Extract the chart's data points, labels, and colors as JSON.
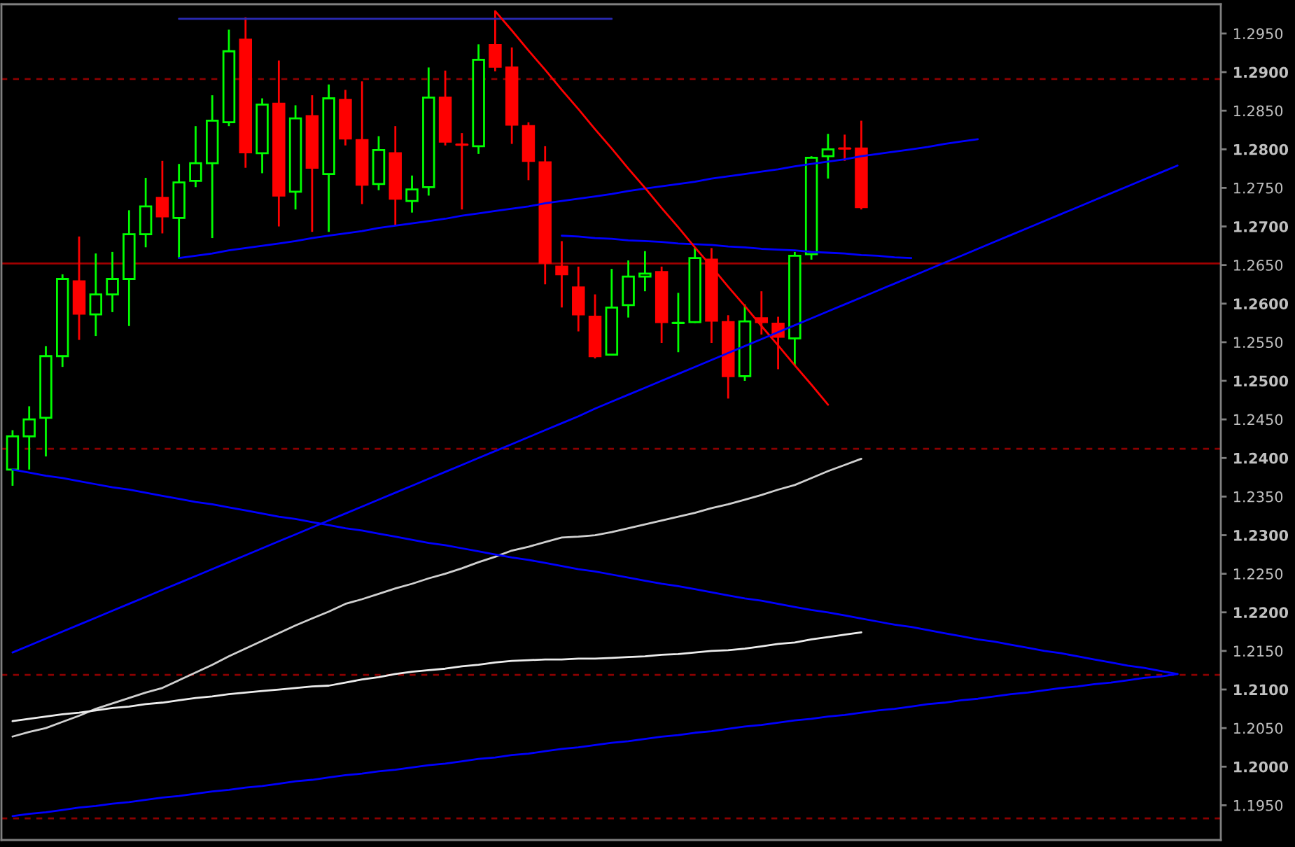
{
  "chart_data": {
    "type": "candlestick",
    "categories": [
      null,
      null,
      null,
      null,
      null,
      null,
      null,
      null,
      null,
      null,
      null,
      null,
      null,
      null,
      null,
      null,
      null,
      null,
      null,
      null,
      null,
      null,
      null,
      null,
      null,
      null,
      null,
      null,
      null,
      null,
      null,
      null,
      null,
      null,
      null,
      null,
      null,
      null,
      null,
      null,
      null,
      null,
      null,
      null,
      null,
      null,
      null,
      null,
      null,
      null,
      null,
      null,
      null,
      null,
      null,
      null,
      null,
      null,
      null,
      null,
      null,
      null,
      null,
      null,
      null,
      null,
      null,
      null,
      null,
      null,
      null,
      null,
      null
    ],
    "ohlc": [
      [
        1.2385,
        1.2436,
        1.2364,
        1.2428
      ],
      [
        1.2428,
        1.2467,
        1.2385,
        1.245
      ],
      [
        1.2452,
        1.2545,
        1.2402,
        1.2532
      ],
      [
        1.2532,
        1.2638,
        1.2518,
        1.2632
      ],
      [
        1.2629,
        1.2687,
        1.2553,
        1.2587
      ],
      [
        1.2586,
        1.2665,
        1.2558,
        1.2612
      ],
      [
        1.2612,
        1.2667,
        1.2589,
        1.2632
      ],
      [
        1.2632,
        1.2721,
        1.2571,
        1.269
      ],
      [
        1.269,
        1.2763,
        1.2673,
        1.2726
      ],
      [
        1.2737,
        1.2785,
        1.2691,
        1.2713
      ],
      [
        1.2711,
        1.2781,
        1.2659,
        1.2757
      ],
      [
        1.2759,
        1.283,
        1.2751,
        1.2782
      ],
      [
        1.2782,
        1.287,
        1.2685,
        1.2837
      ],
      [
        1.2835,
        1.2955,
        1.283,
        1.2927
      ],
      [
        1.2942,
        1.2971,
        1.2776,
        1.2796
      ],
      [
        1.2795,
        1.2866,
        1.2769,
        1.2858
      ],
      [
        1.2859,
        1.2915,
        1.27,
        1.274
      ],
      [
        1.2745,
        1.2857,
        1.2722,
        1.284
      ],
      [
        1.2843,
        1.287,
        1.2693,
        1.2776
      ],
      [
        1.2768,
        1.2884,
        1.2693,
        1.2866
      ],
      [
        1.2864,
        1.2877,
        1.2805,
        1.2814
      ],
      [
        1.2812,
        1.2888,
        1.2729,
        1.2754
      ],
      [
        1.2755,
        1.2817,
        1.2747,
        1.2799
      ],
      [
        1.2795,
        1.283,
        1.2701,
        1.2736
      ],
      [
        1.2733,
        1.2766,
        1.2718,
        1.2748
      ],
      [
        1.2751,
        1.2906,
        1.274,
        1.2867
      ],
      [
        1.2867,
        1.2902,
        1.2805,
        1.281
      ],
      [
        1.2806,
        1.2821,
        1.2722,
        1.2806
      ],
      [
        1.2804,
        1.2936,
        1.2794,
        1.2916
      ],
      [
        1.2935,
        1.2979,
        1.2901,
        1.2907
      ],
      [
        1.2906,
        1.2932,
        1.2807,
        1.2832
      ],
      [
        1.283,
        1.2835,
        1.276,
        1.2785
      ],
      [
        1.2783,
        1.2804,
        1.2625,
        1.2653
      ],
      [
        1.2648,
        1.2681,
        1.2595,
        1.2638
      ],
      [
        1.2621,
        1.2648,
        1.2564,
        1.2586
      ],
      [
        1.2583,
        1.2612,
        1.2529,
        1.2532
      ],
      [
        1.2534,
        1.2645,
        1.2534,
        1.2595
      ],
      [
        1.2598,
        1.2656,
        1.2582,
        1.2635
      ],
      [
        1.2635,
        1.2668,
        1.2616,
        1.2639
      ],
      [
        1.2641,
        1.2648,
        1.2549,
        1.2576
      ],
      [
        1.2575,
        1.2614,
        1.2537,
        1.2575
      ],
      [
        1.2576,
        1.2673,
        1.2575,
        1.2659
      ],
      [
        1.2657,
        1.2672,
        1.2549,
        1.2578
      ],
      [
        1.2576,
        1.2585,
        1.2477,
        1.2506
      ],
      [
        1.2506,
        1.2599,
        1.25,
        1.2577
      ],
      [
        1.2581,
        1.2616,
        1.256,
        1.2576
      ],
      [
        1.2574,
        1.2583,
        1.2515,
        1.2557
      ],
      [
        1.2555,
        1.2667,
        1.252,
        1.2662
      ],
      [
        1.2664,
        1.2791,
        1.2657,
        1.2789
      ],
      [
        1.2791,
        1.282,
        1.2762,
        1.28
      ],
      [
        1.2801,
        1.2819,
        1.2785,
        1.2801
      ],
      [
        1.2801,
        1.2837,
        1.2722,
        1.2725
      ],
      null,
      null,
      null,
      null,
      null,
      null,
      null,
      null,
      null,
      null,
      null,
      null,
      null,
      null,
      null,
      null,
      null,
      null,
      null,
      null,
      null
    ],
    "colors": [
      "#00ff00",
      "#00ff00",
      "#00ff00",
      "#00ff00",
      "#ff0000",
      "#00ff00",
      "#00ff00",
      "#00ff00",
      "#00ff00",
      "#ff0000",
      "#00ff00",
      "#00ff00",
      "#00ff00",
      "#00ff00",
      "#ff0000",
      "#00ff00",
      "#ff0000",
      "#00ff00",
      "#ff0000",
      "#00ff00",
      "#ff0000",
      "#ff0000",
      "#00ff00",
      "#ff0000",
      "#00ff00",
      "#00ff00",
      "#ff0000",
      "#ff0000",
      "#00ff00",
      "#ff0000",
      "#ff0000",
      "#ff0000",
      "#ff0000",
      "#ff0000",
      "#ff0000",
      "#ff0000",
      "#00ff00",
      "#00ff00",
      "#00ff00",
      "#ff0000",
      "#00ff00",
      "#00ff00",
      "#ff0000",
      "#ff0000",
      "#00ff00",
      "#ff0000",
      "#ff0000",
      "#00ff00",
      "#00ff00",
      "#00ff00",
      "#ff0000",
      "#ff0000",
      null,
      null,
      null,
      null,
      null,
      null,
      null,
      null,
      null,
      null,
      null,
      null,
      null,
      null,
      null,
      null,
      null,
      null,
      null,
      null,
      null
    ],
    "series": [
      {
        "type": "line",
        "color": "#d0d0d0",
        "values": [
          1.2039,
          1.2045,
          1.205,
          1.2058,
          1.2066,
          1.2075,
          1.2082,
          1.2089,
          1.2096,
          1.2102,
          1.2112,
          1.2122,
          1.2132,
          1.2143,
          1.2153,
          1.2163,
          1.2173,
          1.2183,
          1.2192,
          1.2201,
          1.2211,
          1.2217,
          1.2224,
          1.2231,
          1.2237,
          1.2244,
          1.225,
          1.2257,
          1.2265,
          1.2272,
          1.228,
          1.2285,
          1.2291,
          1.2297,
          1.2298,
          1.23,
          1.2304,
          1.2309,
          1.2314,
          1.2319,
          1.2324,
          1.2329,
          1.2335,
          1.234,
          1.2346,
          1.2352,
          1.2359,
          1.2365,
          1.2374,
          1.2383,
          1.2391,
          1.2399,
          null,
          null,
          null,
          null,
          null,
          null,
          null,
          null,
          null,
          null,
          null,
          null,
          null,
          null,
          null,
          null,
          null,
          null,
          null,
          null,
          null
        ]
      },
      {
        "type": "line",
        "color": "#ececec",
        "values": [
          1.2059,
          1.2062,
          1.2065,
          1.2068,
          1.207,
          1.2073,
          1.2076,
          1.2078,
          1.2081,
          1.2083,
          1.2086,
          1.2089,
          1.2091,
          1.2094,
          1.2096,
          1.2098,
          1.21,
          1.2102,
          1.2104,
          1.2105,
          1.2109,
          1.2113,
          1.2116,
          1.212,
          1.2123,
          1.2125,
          1.2127,
          1.213,
          1.2132,
          1.2135,
          1.2137,
          1.2138,
          1.2139,
          1.2139,
          1.214,
          1.214,
          1.2141,
          1.2142,
          1.2143,
          1.2145,
          1.2146,
          1.2148,
          1.215,
          1.2151,
          1.2153,
          1.2156,
          1.2159,
          1.2161,
          1.2165,
          1.2168,
          1.2171,
          1.2174,
          null,
          null,
          null,
          null,
          null,
          null,
          null,
          null,
          null,
          null,
          null,
          null,
          null,
          null,
          null,
          null,
          null,
          null,
          null,
          null,
          null
        ]
      },
      {
        "type": "line",
        "color": "#2a2ab4",
        "values": [
          null,
          null,
          null,
          null,
          null,
          null,
          null,
          null,
          null,
          null,
          1.2969,
          1.2969,
          1.2969,
          1.2969,
          1.2969,
          1.2969,
          1.2969,
          1.2969,
          1.2969,
          1.2969,
          1.2969,
          1.2969,
          1.2969,
          1.2969,
          1.2969,
          1.2969,
          1.2969,
          1.2969,
          1.2969,
          1.2969,
          1.2969,
          1.2969,
          1.2969,
          1.2969,
          1.2969,
          1.2969,
          1.2969,
          null,
          null,
          null,
          null,
          null,
          null,
          null,
          null,
          null,
          null,
          null,
          null,
          null,
          null,
          null,
          null,
          null,
          null,
          null,
          null,
          null,
          null,
          null,
          null,
          null,
          null,
          null,
          null,
          null,
          null,
          null,
          null,
          null,
          null,
          null,
          null
        ]
      },
      {
        "type": "line",
        "color": "#0000ff",
        "values": [
          null,
          null,
          null,
          null,
          null,
          null,
          null,
          null,
          null,
          null,
          1.2659,
          1.2662,
          1.2665,
          1.2669,
          1.2672,
          1.2675,
          1.2678,
          1.2681,
          1.2685,
          1.2688,
          1.2691,
          1.2694,
          1.2698,
          1.2701,
          1.2704,
          1.2707,
          1.271,
          1.2714,
          1.2717,
          1.272,
          1.2723,
          1.2726,
          1.273,
          1.2733,
          1.2736,
          1.2739,
          1.2742,
          1.2746,
          1.2749,
          1.2752,
          1.2755,
          1.2758,
          1.2762,
          1.2765,
          1.2768,
          1.2771,
          1.2774,
          1.2778,
          1.2781,
          1.2784,
          1.2787,
          1.2791,
          1.2794,
          1.2797,
          1.28,
          1.2803,
          1.2807,
          1.281,
          1.2813,
          null,
          null,
          null,
          null,
          null,
          null,
          null,
          null,
          null,
          null,
          null,
          null,
          null,
          null
        ]
      },
      {
        "type": "line",
        "color": "#0000ff",
        "values": [
          null,
          null,
          null,
          null,
          null,
          null,
          null,
          null,
          null,
          null,
          null,
          null,
          null,
          null,
          null,
          null,
          null,
          null,
          null,
          null,
          null,
          null,
          null,
          null,
          null,
          null,
          null,
          null,
          null,
          null,
          null,
          null,
          null,
          1.2688,
          1.2687,
          1.2685,
          1.2684,
          1.2682,
          1.2681,
          1.268,
          1.2678,
          1.2677,
          1.2676,
          1.2674,
          1.2673,
          1.2671,
          1.267,
          1.2669,
          1.2667,
          1.2666,
          1.2665,
          1.2663,
          1.2662,
          1.266,
          1.2659,
          null,
          null,
          null,
          null,
          null,
          null,
          null,
          null,
          null,
          null,
          null,
          null,
          null,
          null,
          null,
          null,
          null,
          null
        ]
      },
      {
        "type": "line",
        "color": "#ff0000",
        "values": [
          null,
          null,
          null,
          null,
          null,
          null,
          null,
          null,
          null,
          null,
          null,
          null,
          null,
          null,
          null,
          null,
          null,
          null,
          null,
          null,
          null,
          null,
          null,
          null,
          null,
          null,
          null,
          null,
          null,
          1.2979,
          1.2954,
          1.2928,
          1.2903,
          1.2877,
          1.2852,
          1.2826,
          1.2801,
          1.2775,
          1.275,
          1.2724,
          1.2699,
          1.2673,
          1.2648,
          1.2622,
          1.2597,
          1.2571,
          1.2546,
          1.252,
          1.2495,
          1.2469,
          null,
          null,
          null,
          null,
          null,
          null,
          null,
          null,
          null,
          null,
          null,
          null,
          null,
          null,
          null,
          null,
          null,
          null,
          null,
          null,
          null,
          null,
          null
        ]
      },
      {
        "type": "line",
        "color": "#0000ff",
        "values": [
          1.2148,
          1.2157,
          1.2166,
          1.2175,
          1.2184,
          1.2193,
          1.2202,
          1.2211,
          1.222,
          1.2229,
          1.2238,
          1.2247,
          1.2256,
          1.2265,
          1.2274,
          1.2283,
          1.2292,
          1.2301,
          1.231,
          1.2319,
          1.2328,
          1.2337,
          1.2346,
          1.2355,
          1.2364,
          1.2373,
          1.2382,
          1.2391,
          1.24,
          1.2409,
          1.2418,
          1.2427,
          1.2436,
          1.2445,
          1.2454,
          1.2464,
          1.2473,
          1.2482,
          1.2491,
          1.25,
          1.2509,
          1.2518,
          1.2527,
          1.2536,
          1.2545,
          1.2554,
          1.2563,
          1.2572,
          1.2581,
          1.259,
          1.2599,
          1.2608,
          1.2617,
          1.2626,
          1.2635,
          1.2644,
          1.2653,
          1.2662,
          1.2671,
          1.268,
          1.2689,
          1.2698,
          1.2707,
          1.2716,
          1.2725,
          1.2734,
          1.2743,
          1.2752,
          1.2761,
          1.277,
          1.2779,
          null,
          null
        ]
      },
      {
        "type": "line",
        "color": "#0000ff",
        "values": [
          1.2385,
          1.2381,
          1.2377,
          1.2374,
          1.237,
          1.2366,
          1.2362,
          1.2359,
          1.2355,
          1.2351,
          1.2347,
          1.2343,
          1.234,
          1.2336,
          1.2332,
          1.2328,
          1.2324,
          1.2321,
          1.2317,
          1.2313,
          1.2309,
          1.2306,
          1.2302,
          1.2298,
          1.2294,
          1.229,
          1.2287,
          1.2283,
          1.2279,
          1.2275,
          1.2271,
          1.2268,
          1.2264,
          1.226,
          1.2256,
          1.2253,
          1.2249,
          1.2245,
          1.2241,
          1.2237,
          1.2234,
          1.223,
          1.2226,
          1.2222,
          1.2218,
          1.2215,
          1.2211,
          1.2207,
          1.2203,
          1.22,
          1.2196,
          1.2192,
          1.2188,
          1.2184,
          1.2181,
          1.2177,
          1.2173,
          1.2169,
          1.2165,
          1.2162,
          1.2158,
          1.2154,
          1.215,
          1.2147,
          1.2143,
          1.2139,
          1.2135,
          1.2131,
          1.2128,
          1.2124,
          1.212,
          null,
          null
        ]
      },
      {
        "type": "line",
        "color": "#0000ff",
        "values": [
          1.1936,
          1.1939,
          1.1941,
          1.1944,
          1.1947,
          1.1949,
          1.1952,
          1.1954,
          1.1957,
          1.196,
          1.1962,
          1.1965,
          1.1968,
          1.197,
          1.1973,
          1.1975,
          1.1978,
          1.1981,
          1.1983,
          1.1986,
          1.1989,
          1.1991,
          1.1994,
          1.1996,
          1.1999,
          1.2002,
          1.2004,
          1.2007,
          1.201,
          1.2012,
          1.2015,
          1.2017,
          1.202,
          1.2023,
          1.2025,
          1.2028,
          1.2031,
          1.2033,
          1.2036,
          1.2039,
          1.2041,
          1.2044,
          1.2046,
          1.2049,
          1.2052,
          1.2054,
          1.2057,
          1.206,
          1.2062,
          1.2065,
          1.2067,
          1.207,
          1.2073,
          1.2075,
          1.2078,
          1.2081,
          1.2083,
          1.2086,
          1.2088,
          1.2091,
          1.2094,
          1.2096,
          1.2099,
          1.2102,
          1.2104,
          1.2107,
          1.2109,
          1.2112,
          1.2115,
          1.2117,
          1.212,
          null,
          null
        ]
      }
    ],
    "ref_lines": [
      {
        "axis": "y",
        "value": 1.2891,
        "color": "#8b0000",
        "line_style": "dashed"
      },
      {
        "axis": "y",
        "value": 1.2652,
        "color": "#a00000",
        "line_style": "solid"
      },
      {
        "axis": "y",
        "value": 1.2412,
        "color": "#8b0000",
        "line_style": "dashed"
      },
      {
        "axis": "y",
        "value": 1.2119,
        "color": "#8b0000",
        "line_style": "dashed"
      },
      {
        "axis": "y",
        "value": 1.1933,
        "color": "#8b0000",
        "line_style": "dashed"
      }
    ],
    "ylim": [
      1.1905,
      1.2988
    ],
    "yticks": [
      {
        "value": 1.195,
        "label": "1.1950"
      },
      {
        "value": 1.2,
        "label": "1.2000"
      },
      {
        "value": 1.205,
        "label": "1.2050"
      },
      {
        "value": 1.21,
        "label": "1.2100"
      },
      {
        "value": 1.215,
        "label": "1.2150"
      },
      {
        "value": 1.22,
        "label": "1.2200"
      },
      {
        "value": 1.225,
        "label": "1.2250"
      },
      {
        "value": 1.23,
        "label": "1.2300"
      },
      {
        "value": 1.235,
        "label": "1.2350"
      },
      {
        "value": 1.24,
        "label": "1.2400"
      },
      {
        "value": 1.245,
        "label": "1.2450"
      },
      {
        "value": 1.25,
        "label": "1.2500"
      },
      {
        "value": 1.255,
        "label": "1.2550"
      },
      {
        "value": 1.26,
        "label": "1.2600"
      },
      {
        "value": 1.265,
        "label": "1.2650"
      },
      {
        "value": 1.27,
        "label": "1.2700"
      },
      {
        "value": 1.275,
        "label": "1.2750"
      },
      {
        "value": 1.28,
        "label": "1.2800"
      },
      {
        "value": 1.285,
        "label": "1.2850"
      },
      {
        "value": 1.29,
        "label": "1.2900"
      },
      {
        "value": 1.295,
        "label": "1.2950"
      }
    ],
    "tick_labels": "y"
  }
}
